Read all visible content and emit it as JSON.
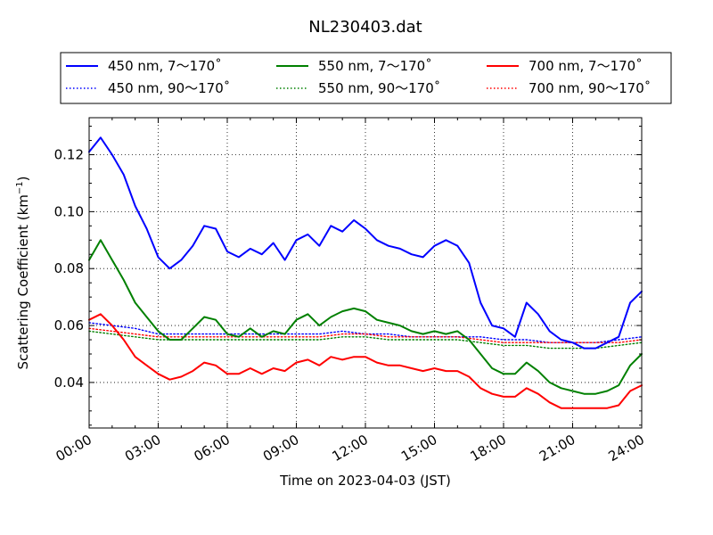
{
  "chart_data": {
    "type": "line",
    "title": "NL230403.dat",
    "xlabel": "Time on 2023-04-03 (JST)",
    "ylabel": "Scattering Coefficient (km",
    "ylabel_sup": "−1",
    "ylabel_close": ")",
    "xlim": [
      "00:00",
      "24:00"
    ],
    "ylim": [
      0.024,
      0.133
    ],
    "xticks": [
      "00:00",
      "03:00",
      "06:00",
      "09:00",
      "12:00",
      "15:00",
      "18:00",
      "21:00",
      "24:00"
    ],
    "yticks": [
      "0.04",
      "0.06",
      "0.08",
      "0.10",
      "0.12"
    ],
    "grid": true,
    "legend_position": "top",
    "series": [
      {
        "name": "450 nm, 7～170˚",
        "color": "#0000ff",
        "style": "solid",
        "x": [
          "00:00",
          "00:30",
          "01:00",
          "01:30",
          "02:00",
          "02:30",
          "03:00",
          "03:30",
          "04:00",
          "04:30",
          "05:00",
          "05:30",
          "06:00",
          "06:30",
          "07:00",
          "07:30",
          "08:00",
          "08:30",
          "09:00",
          "09:30",
          "10:00",
          "10:30",
          "11:00",
          "11:30",
          "12:00",
          "12:30",
          "13:00",
          "13:30",
          "14:00",
          "14:30",
          "15:00",
          "15:30",
          "16:00",
          "16:30",
          "17:00",
          "17:30",
          "18:00",
          "18:30",
          "19:00",
          "19:30",
          "20:00",
          "20:30",
          "21:00",
          "21:30",
          "22:00",
          "22:30",
          "23:00",
          "23:30",
          "24:00"
        ],
        "values": [
          0.121,
          0.126,
          0.12,
          0.113,
          0.102,
          0.094,
          0.084,
          0.08,
          0.083,
          0.088,
          0.095,
          0.094,
          0.086,
          0.084,
          0.087,
          0.085,
          0.089,
          0.083,
          0.09,
          0.092,
          0.088,
          0.095,
          0.093,
          0.097,
          0.094,
          0.09,
          0.088,
          0.087,
          0.085,
          0.084,
          0.088,
          0.09,
          0.088,
          0.082,
          0.068,
          0.06,
          0.059,
          0.056,
          0.068,
          0.064,
          0.058,
          0.055,
          0.054,
          0.052,
          0.052,
          0.054,
          0.056,
          0.068,
          0.072
        ]
      },
      {
        "name": "550 nm, 7～170˚",
        "color": "#008000",
        "style": "solid",
        "x": [
          "00:00",
          "00:30",
          "01:00",
          "01:30",
          "02:00",
          "02:30",
          "03:00",
          "03:30",
          "04:00",
          "04:30",
          "05:00",
          "05:30",
          "06:00",
          "06:30",
          "07:00",
          "07:30",
          "08:00",
          "08:30",
          "09:00",
          "09:30",
          "10:00",
          "10:30",
          "11:00",
          "11:30",
          "12:00",
          "12:30",
          "13:00",
          "13:30",
          "14:00",
          "14:30",
          "15:00",
          "15:30",
          "16:00",
          "16:30",
          "17:00",
          "17:30",
          "18:00",
          "18:30",
          "19:00",
          "19:30",
          "20:00",
          "20:30",
          "21:00",
          "21:30",
          "22:00",
          "22:30",
          "23:00",
          "23:30",
          "24:00"
        ],
        "values": [
          0.083,
          0.09,
          0.083,
          0.076,
          0.068,
          0.063,
          0.058,
          0.055,
          0.055,
          0.059,
          0.063,
          0.062,
          0.057,
          0.056,
          0.059,
          0.056,
          0.058,
          0.057,
          0.062,
          0.064,
          0.06,
          0.063,
          0.065,
          0.066,
          0.065,
          0.062,
          0.061,
          0.06,
          0.058,
          0.057,
          0.058,
          0.057,
          0.058,
          0.055,
          0.05,
          0.045,
          0.043,
          0.043,
          0.047,
          0.044,
          0.04,
          0.038,
          0.037,
          0.036,
          0.036,
          0.037,
          0.039,
          0.046,
          0.05
        ]
      },
      {
        "name": "700 nm, 7～170˚",
        "color": "#ff0000",
        "style": "solid",
        "x": [
          "00:00",
          "00:30",
          "01:00",
          "01:30",
          "02:00",
          "02:30",
          "03:00",
          "03:30",
          "04:00",
          "04:30",
          "05:00",
          "05:30",
          "06:00",
          "06:30",
          "07:00",
          "07:30",
          "08:00",
          "08:30",
          "09:00",
          "09:30",
          "10:00",
          "10:30",
          "11:00",
          "11:30",
          "12:00",
          "12:30",
          "13:00",
          "13:30",
          "14:00",
          "14:30",
          "15:00",
          "15:30",
          "16:00",
          "16:30",
          "17:00",
          "17:30",
          "18:00",
          "18:30",
          "19:00",
          "19:30",
          "20:00",
          "20:30",
          "21:00",
          "21:30",
          "22:00",
          "22:30",
          "23:00",
          "23:30",
          "24:00"
        ],
        "values": [
          0.062,
          0.064,
          0.06,
          0.055,
          0.049,
          0.046,
          0.043,
          0.041,
          0.042,
          0.044,
          0.047,
          0.046,
          0.043,
          0.043,
          0.045,
          0.043,
          0.045,
          0.044,
          0.047,
          0.048,
          0.046,
          0.049,
          0.048,
          0.049,
          0.049,
          0.047,
          0.046,
          0.046,
          0.045,
          0.044,
          0.045,
          0.044,
          0.044,
          0.042,
          0.038,
          0.036,
          0.035,
          0.035,
          0.038,
          0.036,
          0.033,
          0.031,
          0.031,
          0.031,
          0.031,
          0.031,
          0.032,
          0.037,
          0.039
        ]
      },
      {
        "name": "450 nm, 90～170˚",
        "color": "#0000ff",
        "style": "dotted",
        "x": [
          "00:00",
          "01:00",
          "02:00",
          "03:00",
          "04:00",
          "05:00",
          "06:00",
          "07:00",
          "08:00",
          "09:00",
          "10:00",
          "11:00",
          "12:00",
          "13:00",
          "14:00",
          "15:00",
          "16:00",
          "17:00",
          "18:00",
          "19:00",
          "20:00",
          "21:00",
          "22:00",
          "23:00",
          "24:00"
        ],
        "values": [
          0.061,
          0.06,
          0.059,
          0.057,
          0.057,
          0.057,
          0.057,
          0.057,
          0.057,
          0.057,
          0.057,
          0.058,
          0.057,
          0.057,
          0.056,
          0.056,
          0.056,
          0.056,
          0.055,
          0.055,
          0.054,
          0.054,
          0.054,
          0.055,
          0.056
        ]
      },
      {
        "name": "550 nm, 90～170˚",
        "color": "#008000",
        "style": "dotted",
        "x": [
          "00:00",
          "01:00",
          "02:00",
          "03:00",
          "04:00",
          "05:00",
          "06:00",
          "07:00",
          "08:00",
          "09:00",
          "10:00",
          "11:00",
          "12:00",
          "13:00",
          "14:00",
          "15:00",
          "16:00",
          "17:00",
          "18:00",
          "19:00",
          "20:00",
          "21:00",
          "22:00",
          "23:00",
          "24:00"
        ],
        "values": [
          0.058,
          0.057,
          0.056,
          0.055,
          0.055,
          0.055,
          0.055,
          0.055,
          0.055,
          0.055,
          0.055,
          0.056,
          0.056,
          0.055,
          0.055,
          0.055,
          0.055,
          0.054,
          0.053,
          0.053,
          0.052,
          0.052,
          0.052,
          0.053,
          0.054
        ]
      },
      {
        "name": "700 nm, 90～170˚",
        "color": "#ff0000",
        "style": "dotted",
        "x": [
          "00:00",
          "01:00",
          "02:00",
          "03:00",
          "04:00",
          "05:00",
          "06:00",
          "07:00",
          "08:00",
          "09:00",
          "10:00",
          "11:00",
          "12:00",
          "13:00",
          "14:00",
          "15:00",
          "16:00",
          "17:00",
          "18:00",
          "19:00",
          "20:00",
          "21:00",
          "22:00",
          "23:00",
          "24:00"
        ],
        "values": [
          0.059,
          0.058,
          0.057,
          0.056,
          0.056,
          0.056,
          0.056,
          0.056,
          0.056,
          0.056,
          0.056,
          0.057,
          0.057,
          0.056,
          0.056,
          0.056,
          0.056,
          0.055,
          0.054,
          0.054,
          0.054,
          0.054,
          0.054,
          0.054,
          0.055
        ]
      }
    ],
    "legend": {
      "rows": [
        [
          "450 nm, 7～170˚",
          "550 nm, 7～170˚",
          "700 nm, 7～170˚"
        ],
        [
          "450 nm, 90～170˚",
          "550 nm, 90～170˚",
          "700 nm, 90～170˚"
        ]
      ]
    }
  }
}
